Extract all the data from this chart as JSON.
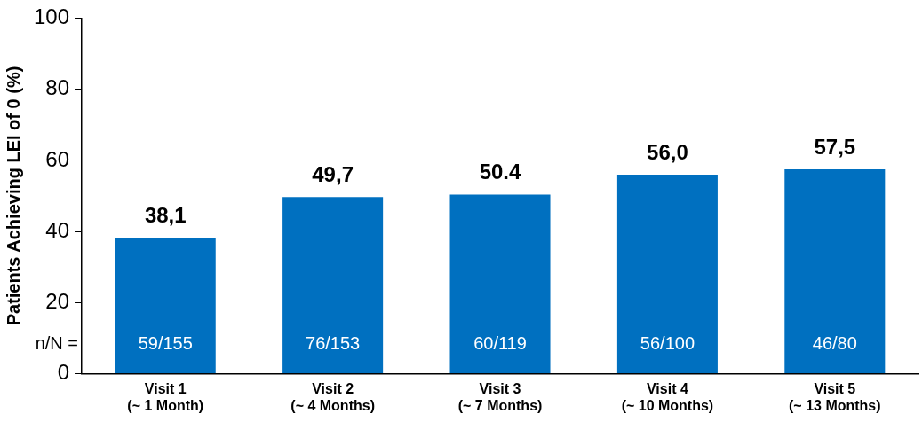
{
  "chart_data": {
    "type": "bar",
    "ylabel": "Patients Achieving LEI of 0 (%)",
    "categories": [
      "Visit 1\n(~ 1 Month)",
      "Visit 2\n(~ 4 Months)",
      "Visit 3\n(~ 7 Months)",
      "Visit 4\n(~ 10 Months)",
      "Visit 5\n(~ 13 Months)"
    ],
    "values": [
      38.1,
      49.7,
      50.4,
      56.0,
      57.5
    ],
    "value_labels": [
      "38,1",
      "49,7",
      "50.4",
      "56,0",
      "57,5"
    ],
    "color": "#0070c0",
    "ylim": [
      0,
      100
    ],
    "yticks": [
      0,
      20,
      40,
      60,
      80,
      100
    ],
    "grid": false,
    "legend": false,
    "annotations": [
      "n/N =",
      "59/155",
      "76/153",
      "60/119",
      "56/100",
      "46/80"
    ]
  }
}
